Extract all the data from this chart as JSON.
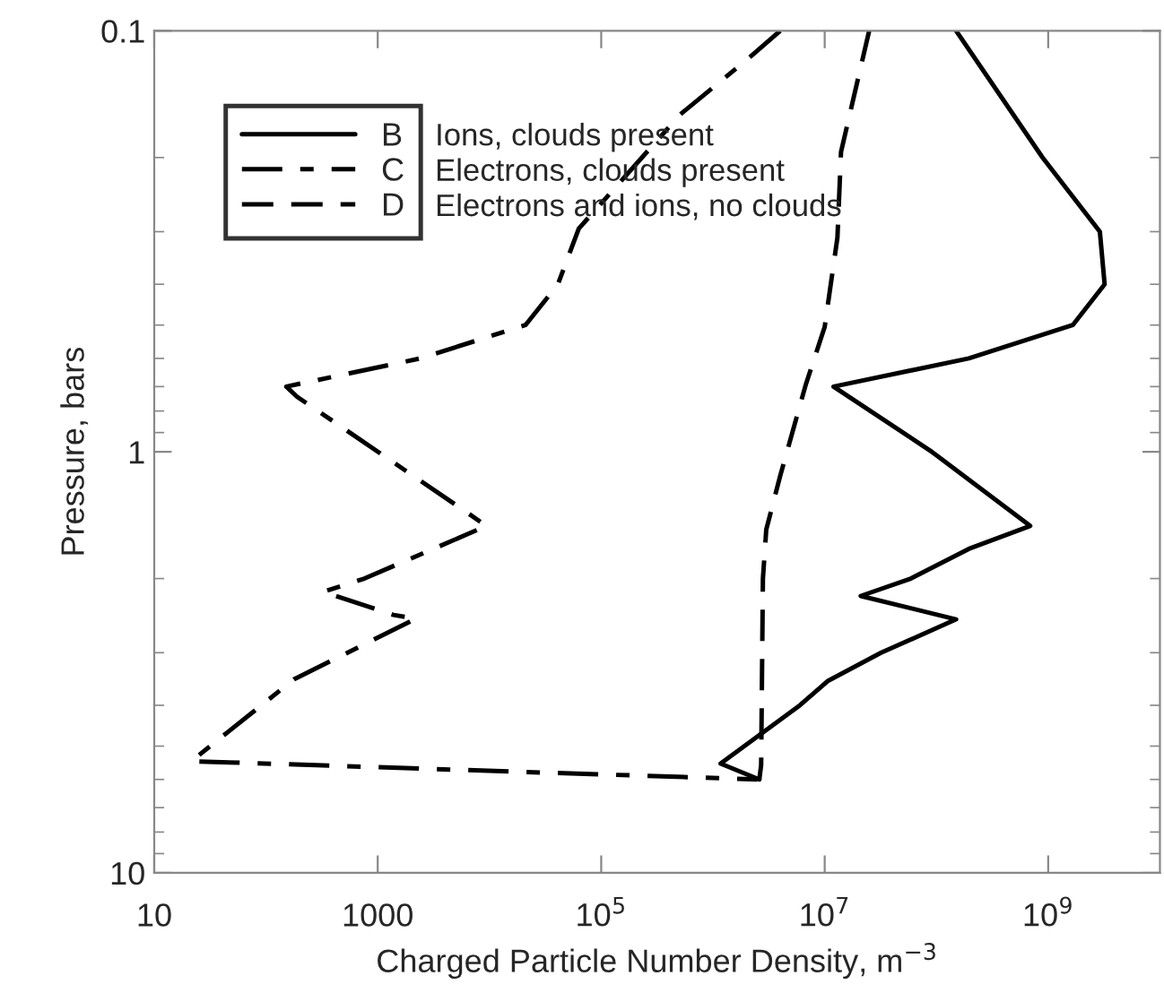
{
  "chart_data": {
    "type": "line",
    "xlabel": "Charged Particle Number Density, m$^{−3}$",
    "ylabel": "Pressure, bars",
    "log": "xy",
    "xlim": [
      10,
      10000000000.0
    ],
    "ylim": [
      10,
      0.1
    ],
    "xticks": [
      10,
      1000,
      {
        "value": 100000.0,
        "label": "10$^{5}$"
      },
      {
        "value": 10000000.0,
        "label": "10$^{7}$"
      },
      {
        "value": 1000000000.0,
        "label": "10$^{9}$"
      }
    ],
    "yticks": [
      0.1,
      1,
      10
    ],
    "legend": "top left",
    "grid": false,
    "series": [
      {
        "name": "B",
        "color": "#000000",
        "line_style": "solid",
        "x": [
          150000000.0,
          890000000.0,
          2900000000.0,
          3200000000.0,
          1660000000.0,
          195000000.0,
          12000000.0,
          91000000.0,
          690000000.0,
          195000000.0,
          59000000.0,
          21000000.0,
          150000000.0,
          32000000.0,
          10700000.0,
          6000000.0,
          1170000.0,
          2600000.0
        ],
        "values": [
          0.1,
          0.2,
          0.3,
          0.4,
          0.5,
          0.6,
          0.7,
          1.0,
          1.5,
          1.7,
          2.0,
          2.2,
          2.5,
          3.0,
          3.5,
          4.0,
          5.5,
          6.0
        ]
      },
      {
        "name": "C",
        "color": "#000000",
        "line_style": "dashdot",
        "x": [
          4000000.0,
          2100000.0,
          510000.0,
          63000.0,
          41000.0,
          21000.0,
          2400.0,
          152,
          190,
          5500.0,
          9400.0,
          760,
          325,
          1380,
          2200,
          178,
          21.5,
          2500000.0
        ],
        "values": [
          0.1,
          0.116,
          0.158,
          0.295,
          0.4,
          0.5,
          0.6,
          0.7,
          0.74,
          1.36,
          1.5,
          2.0,
          2.15,
          2.44,
          2.49,
          3.47,
          5.43,
          6.0
        ]
      },
      {
        "name": "D",
        "color": "#000000",
        "line_style": "dashed",
        "x": [
          25000000.0,
          14000000.0,
          13000000.0,
          10000000.0,
          6800000.0,
          4000000.0,
          3000000.0,
          2800000.0,
          2700000.0,
          2600000.0
        ],
        "values": [
          0.1,
          0.194,
          0.31,
          0.505,
          0.69,
          1.14,
          1.53,
          2.0,
          5.55,
          6.0
        ]
      }
    ],
    "annotations": [
      "Ions, clouds present",
      "Electrons, clouds present",
      "Electrons and ions, no clouds"
    ]
  }
}
